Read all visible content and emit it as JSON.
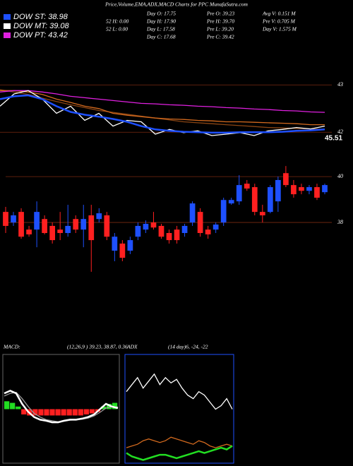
{
  "header": {
    "title": "Price,Volume,EMA,ADX,MACD Charts for PPC MunafaSutra.com",
    "legend": [
      {
        "label": "DOW ST: 38.98",
        "color": "#1e50ff"
      },
      {
        "label": "DOW MT: 39.08",
        "color": "#ffffff"
      },
      {
        "label": "DOW PT: 43.42",
        "color": "#e020e0"
      }
    ],
    "stats": [
      [
        "52 H: 0.00",
        "52 L: 0.00"
      ],
      [
        "Day O: 17.75",
        "Day H: 17.90",
        "Day L: 17.58",
        "Day C: 17.68"
      ],
      [
        "Pre O: 39.23",
        "Pre H: 39.70",
        "Pre L: 39.20",
        "Pre C: 39.42"
      ],
      [
        "Avg V: 0.151 M",
        "Pre V: 0.705 M",
        "Day V: 1.575 M"
      ]
    ]
  },
  "chart_data": [
    {
      "type": "line",
      "ylim": [
        41.81,
        43.87
      ],
      "yticks": [
        42,
        43
      ],
      "grid": true,
      "annotation": "45.51",
      "series": [
        {
          "color": "#8b4513",
          "values": [
            42.9,
            42.85,
            42.8,
            42.72,
            42.65,
            42.58,
            42.52,
            42.46,
            42.42,
            42.38,
            42.34,
            42.3,
            42.26,
            42.22,
            42.2,
            42.18,
            42.16,
            42.14,
            42.12,
            42.1,
            42.09,
            42.08,
            42.07,
            42.06
          ]
        },
        {
          "color": "#d2691e",
          "values": [
            42.88,
            42.88,
            42.85,
            42.8,
            42.7,
            42.63,
            42.55,
            42.5,
            42.4,
            42.36,
            42.33,
            42.3,
            42.28,
            42.27,
            42.25,
            42.24,
            42.22,
            42.22,
            42.21,
            42.2,
            42.19,
            42.18,
            42.16,
            42.16
          ]
        },
        {
          "color": "#e020e0",
          "values": [
            42.85,
            42.88,
            42.88,
            42.85,
            42.81,
            42.76,
            42.73,
            42.7,
            42.67,
            42.64,
            42.61,
            42.6,
            42.58,
            42.57,
            42.55,
            42.54,
            42.52,
            42.51,
            42.49,
            42.48,
            42.46,
            42.45,
            42.43,
            42.42
          ]
        },
        {
          "color": "#ffffff",
          "values": [
            42.55,
            42.81,
            42.88,
            42.7,
            42.4,
            42.55,
            42.25,
            42.4,
            42.13,
            42.25,
            42.22,
            41.96,
            42.06,
            41.99,
            42.03,
            41.93,
            41.96,
            41.99,
            41.93,
            42.03,
            42.06,
            42.1,
            42.07,
            42.13
          ]
        },
        {
          "color": "#1e50ff",
          "values": [
            42.7,
            42.76,
            42.78,
            42.7,
            42.55,
            42.43,
            42.37,
            42.33,
            42.28,
            42.22,
            42.13,
            42.06,
            42.03,
            42.01,
            42.0,
            41.99,
            41.99,
            42.0,
            42.0,
            42.0,
            42.01,
            42.03,
            42.04,
            42.06
          ]
        }
      ]
    },
    {
      "type": "candlestick",
      "ylim": [
        35.54,
        41.08
      ],
      "yticks": [
        38,
        40
      ],
      "grid": true,
      "up_color": "#1e50ff",
      "down_color": "#ff2020",
      "open": [
        38.46,
        38.0,
        38.46,
        37.69,
        37.69,
        38.15,
        37.85,
        37.69,
        37.54,
        38.15,
        37.69,
        38.31,
        38.15,
        38.31,
        36.77,
        37.08,
        36.77,
        37.38,
        37.69,
        38.0,
        37.85,
        37.54,
        37.69,
        37.54,
        38.0,
        38.46,
        37.69,
        37.69,
        38.0,
        38.83,
        38.92,
        39.69,
        39.54,
        38.46,
        38.46,
        38.92,
        40.15,
        39.63,
        39.54,
        39.38,
        39.54,
        39.32
      ],
      "high": [
        38.68,
        38.46,
        38.62,
        37.85,
        38.92,
        38.31,
        38.0,
        38.46,
        38.77,
        38.31,
        38.77,
        38.77,
        38.62,
        38.46,
        37.54,
        37.23,
        37.38,
        38.0,
        38.09,
        38.46,
        37.94,
        37.69,
        37.85,
        37.94,
        38.92,
        38.62,
        37.85,
        38.0,
        39.08,
        39.08,
        40.06,
        39.85,
        39.69,
        38.77,
        39.63,
        40.0,
        40.46,
        39.85,
        39.69,
        39.63,
        39.69,
        39.69
      ],
      "low": [
        37.54,
        37.85,
        37.29,
        37.38,
        36.92,
        37.48,
        37.08,
        37.23,
        37.38,
        37.54,
        36.92,
        35.85,
        38.0,
        37.23,
        36.31,
        36.31,
        36.62,
        37.23,
        37.54,
        37.69,
        37.29,
        37.08,
        37.08,
        37.38,
        37.85,
        37.38,
        37.29,
        37.54,
        37.85,
        38.77,
        38.77,
        39.38,
        38.31,
        38.0,
        38.4,
        38.46,
        39.54,
        39.08,
        39.23,
        39.23,
        38.98,
        39.23
      ],
      "close": [
        37.85,
        38.31,
        37.38,
        37.48,
        38.46,
        37.54,
        37.23,
        37.54,
        37.85,
        37.69,
        38.15,
        37.23,
        38.4,
        37.38,
        37.38,
        36.46,
        37.23,
        37.85,
        37.94,
        37.78,
        37.38,
        37.23,
        37.23,
        37.85,
        38.83,
        37.54,
        37.48,
        37.91,
        38.98,
        38.98,
        39.63,
        39.48,
        38.46,
        38.31,
        39.54,
        39.85,
        39.63,
        39.23,
        39.38,
        39.54,
        39.08,
        39.63
      ]
    },
    {
      "type": "line",
      "title": "MACD:",
      "subtitle": "(12,26,9 ) 39.23, 38.87, 0.36",
      "ylim": [
        -1,
        1
      ],
      "histogram": {
        "up_color": "#22dd22",
        "down_color": "#ff2020",
        "values": [
          0.15,
          0.12,
          0.05,
          -0.1,
          -0.12,
          -0.12,
          -0.12,
          -0.12,
          -0.12,
          -0.12,
          -0.12,
          -0.12,
          -0.12,
          -0.12,
          -0.1,
          -0.08,
          -0.05,
          0.05,
          0.1,
          0.12
        ]
      },
      "series": [
        {
          "color": "#999999",
          "values": [
            0.25,
            0.3,
            0.32,
            0.2,
            0.05,
            -0.08,
            -0.15,
            -0.2,
            -0.22,
            -0.24,
            -0.23,
            -0.21,
            -0.2,
            -0.19,
            -0.17,
            -0.13,
            -0.06,
            0.02,
            0.05,
            0.04
          ]
        },
        {
          "color": "#ffffff",
          "values": [
            0.3,
            0.35,
            0.3,
            0.1,
            -0.05,
            -0.15,
            -0.2,
            -0.22,
            -0.25,
            -0.25,
            -0.22,
            -0.2,
            -0.2,
            -0.18,
            -0.15,
            -0.1,
            0,
            0.1,
            0.05,
            0.02
          ]
        }
      ]
    },
    {
      "type": "line",
      "title": "ADX",
      "subtitle": "(14  day)6, -24, -22",
      "ylim": [
        0,
        60
      ],
      "border": "#1e50ff",
      "series": [
        {
          "color": "#ffffff",
          "values": [
            40,
            44,
            48,
            42,
            46,
            50,
            44,
            48,
            45,
            47,
            42,
            38,
            36,
            40,
            38,
            34,
            30,
            32,
            36,
            30
          ]
        },
        {
          "color": "#d2691e",
          "values": [
            8,
            9,
            10,
            12,
            13,
            12,
            11,
            12,
            14,
            13,
            12,
            11,
            10,
            12,
            11,
            9,
            8,
            9,
            10,
            9
          ]
        },
        {
          "color": "#22dd22",
          "values": [
            5,
            3,
            2,
            1,
            2,
            3,
            4,
            4,
            3,
            2,
            3,
            4,
            5,
            6,
            5,
            6,
            7,
            8,
            7,
            9
          ]
        }
      ]
    }
  ]
}
